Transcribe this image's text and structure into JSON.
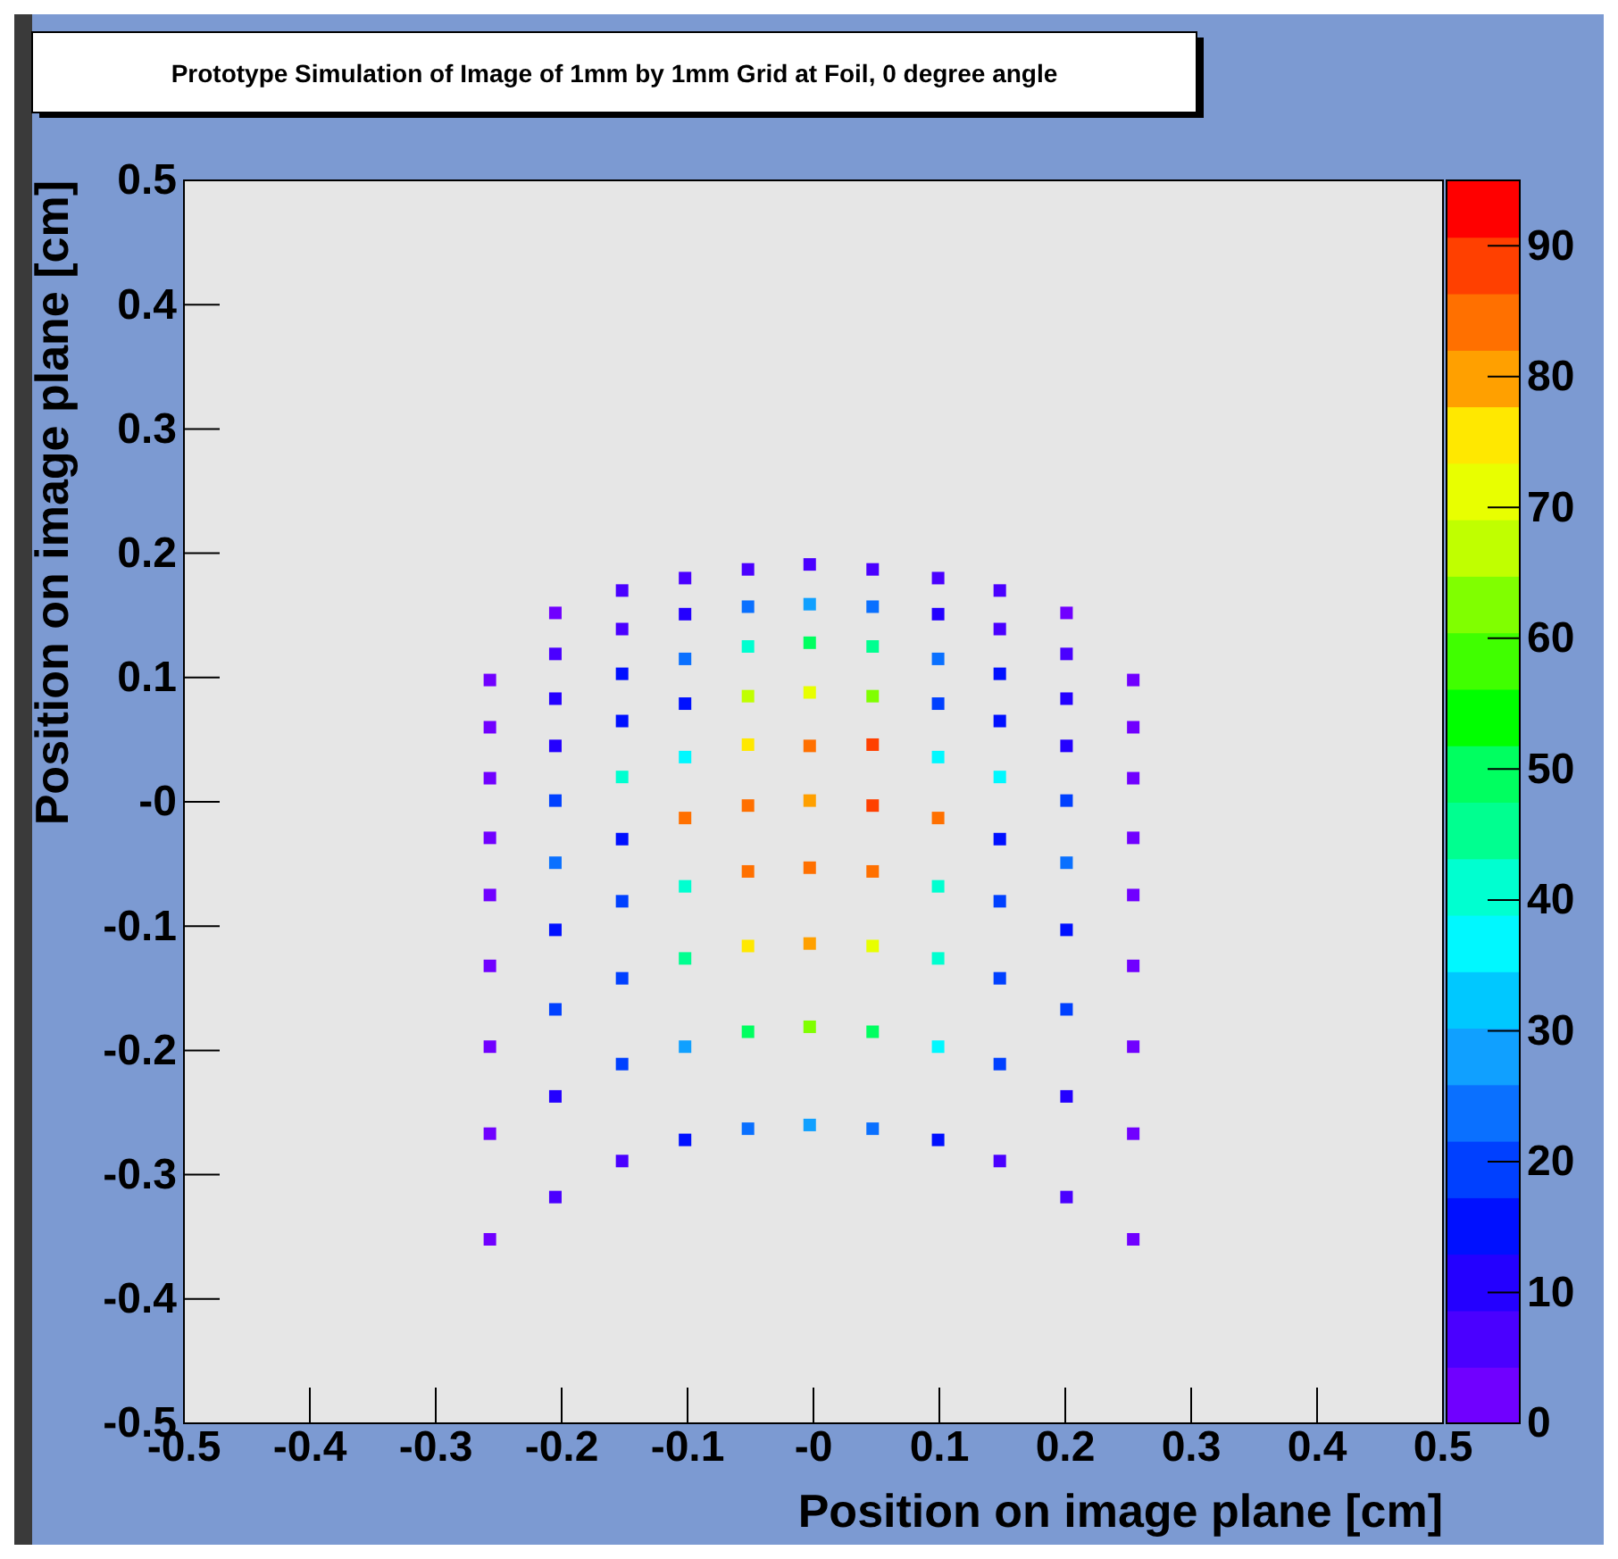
{
  "chart_data": {
    "type": "scatter",
    "title": "Prototype Simulation of Image of 1mm by 1mm Grid at Foil, 0 degree angle",
    "xlabel": "Position on image plane [cm]",
    "ylabel": "Position on image plane [cm]",
    "marker": "square",
    "xlim": [
      -0.5,
      0.5
    ],
    "ylim": [
      -0.5,
      0.5
    ],
    "xticks": [
      -0.5,
      -0.4,
      -0.3,
      -0.2,
      -0.1,
      {
        "value": 0,
        "label": "-0"
      },
      0.1,
      0.2,
      0.3,
      0.4,
      0.5
    ],
    "yticks": [
      -0.5,
      -0.4,
      -0.3,
      -0.2,
      -0.1,
      {
        "value": 0,
        "label": "-0"
      },
      0.1,
      0.2,
      0.3,
      0.4,
      0.5
    ],
    "clim": [
      0,
      95
    ],
    "cticks": [
      0,
      10,
      20,
      30,
      40,
      50,
      60,
      70,
      80,
      90
    ],
    "series": [
      {
        "x": [
          -0.257,
          -0.257,
          -0.257,
          -0.257,
          -0.257,
          -0.257,
          -0.257,
          -0.257,
          -0.257,
          -0.205,
          -0.205,
          -0.205,
          -0.205,
          -0.205,
          -0.205,
          -0.205,
          -0.205,
          -0.205,
          -0.205,
          -0.152,
          -0.152,
          -0.152,
          -0.152,
          -0.152,
          -0.152,
          -0.152,
          -0.152,
          -0.152,
          -0.152,
          -0.102,
          -0.102,
          -0.102,
          -0.102,
          -0.102,
          -0.102,
          -0.102,
          -0.102,
          -0.102,
          -0.102,
          -0.052,
          -0.052,
          -0.052,
          -0.052,
          -0.052,
          -0.052,
          -0.052,
          -0.052,
          -0.052,
          -0.052,
          -0.003,
          -0.003,
          -0.003,
          -0.003,
          -0.003,
          -0.003,
          -0.003,
          -0.003,
          -0.003,
          -0.003,
          0.047,
          0.047,
          0.047,
          0.047,
          0.047,
          0.047,
          0.047,
          0.047,
          0.047,
          0.047,
          0.099,
          0.099,
          0.099,
          0.099,
          0.099,
          0.099,
          0.099,
          0.099,
          0.099,
          0.099,
          0.148,
          0.148,
          0.148,
          0.148,
          0.148,
          0.148,
          0.148,
          0.148,
          0.148,
          0.148,
          0.201,
          0.201,
          0.201,
          0.201,
          0.201,
          0.201,
          0.201,
          0.201,
          0.201,
          0.201,
          0.254,
          0.254,
          0.254,
          0.254,
          0.254,
          0.254,
          0.254,
          0.254,
          0.254
        ],
        "values": [
          0.098,
          0.06,
          0.019,
          -0.029,
          -0.075,
          -0.132,
          -0.197,
          -0.267,
          -0.352,
          0.152,
          0.119,
          0.083,
          0.045,
          0.001,
          -0.049,
          -0.103,
          -0.167,
          -0.237,
          -0.318,
          0.17,
          0.139,
          0.103,
          0.065,
          0.02,
          -0.03,
          -0.08,
          -0.142,
          -0.211,
          -0.289,
          0.18,
          0.151,
          0.115,
          0.079,
          0.036,
          -0.013,
          -0.068,
          -0.126,
          -0.197,
          -0.272,
          0.187,
          0.157,
          0.125,
          0.085,
          0.046,
          -0.003,
          -0.056,
          -0.116,
          -0.185,
          -0.263,
          0.191,
          0.159,
          0.128,
          0.088,
          0.045,
          0.001,
          -0.053,
          -0.114,
          -0.181,
          -0.26,
          0.187,
          0.157,
          0.125,
          0.085,
          0.046,
          -0.003,
          -0.056,
          -0.116,
          -0.185,
          -0.263,
          0.18,
          0.151,
          0.115,
          0.079,
          0.036,
          -0.013,
          -0.068,
          -0.126,
          -0.197,
          -0.272,
          0.17,
          0.139,
          0.103,
          0.065,
          0.02,
          -0.03,
          -0.08,
          -0.142,
          -0.211,
          -0.289,
          0.152,
          0.119,
          0.083,
          0.045,
          0.001,
          -0.049,
          -0.103,
          -0.167,
          -0.237,
          -0.318,
          0.098,
          0.06,
          0.019,
          -0.029,
          -0.075,
          -0.132,
          -0.197,
          -0.267,
          -0.352
        ],
        "cvalues": [
          3,
          3,
          3,
          3,
          3,
          3,
          3,
          3,
          3,
          3,
          5,
          10,
          10,
          20,
          25,
          15,
          20,
          12,
          5,
          5,
          8,
          15,
          15,
          40,
          15,
          20,
          20,
          20,
          8,
          5,
          10,
          25,
          15,
          35,
          85,
          40,
          45,
          30,
          15,
          5,
          25,
          40,
          65,
          75,
          85,
          85,
          75,
          50,
          25,
          8,
          30,
          50,
          70,
          85,
          78,
          85,
          78,
          62,
          30,
          5,
          25,
          45,
          62,
          88,
          88,
          85,
          70,
          50,
          25,
          5,
          10,
          25,
          20,
          35,
          85,
          40,
          40,
          35,
          15,
          5,
          8,
          15,
          15,
          35,
          15,
          20,
          20,
          20,
          8,
          3,
          5,
          10,
          10,
          20,
          25,
          15,
          20,
          12,
          5,
          3,
          3,
          3,
          3,
          3,
          3,
          3,
          3,
          3
        ]
      }
    ]
  }
}
